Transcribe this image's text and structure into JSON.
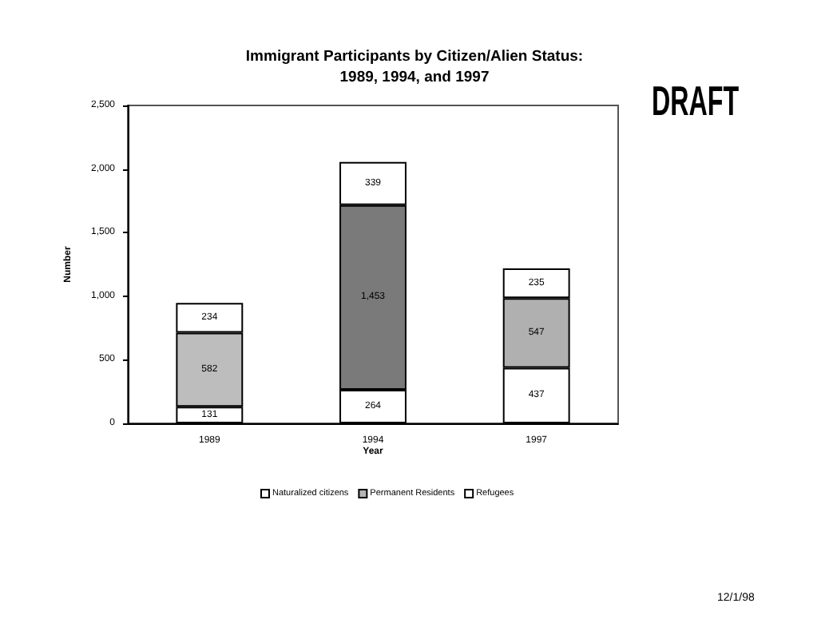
{
  "chart_data": {
    "type": "bar",
    "title": "Immigrant Participants by Citizen/Alien Status:\n1989, 1994, and 1997",
    "xlabel": "Year",
    "ylabel": "Number",
    "categories": [
      "1989",
      "1994",
      "1997"
    ],
    "series": [
      {
        "name": "Naturalized citizens",
        "color": "#ffffff",
        "values": [
          131,
          264,
          437
        ],
        "value_labels": [
          "131",
          "264",
          "437"
        ]
      },
      {
        "name": "Permanent Residents",
        "color": "#b4b4b4",
        "colors": [
          "#bdbdbd",
          "#7a7a7a",
          "#b0b0b0"
        ],
        "values": [
          582,
          1453,
          547
        ],
        "value_labels": [
          "582",
          "1,453",
          "547"
        ]
      },
      {
        "name": "Refugees",
        "color": "#ffffff",
        "values": [
          234,
          339,
          235
        ],
        "value_labels": [
          "234",
          "339",
          "235"
        ]
      }
    ],
    "stacked": true,
    "ylim": [
      0,
      2500
    ],
    "yticks": [
      0,
      500,
      {
        "value": 1000,
        "label": "1,000"
      },
      {
        "value": 1500,
        "label": "1,500"
      },
      {
        "value": 2000,
        "label": "2,000"
      },
      {
        "value": 2500,
        "label": "2,500"
      }
    ],
    "legend": "bottom",
    "annotations": [
      "DRAFT",
      "12/1/98"
    ]
  }
}
